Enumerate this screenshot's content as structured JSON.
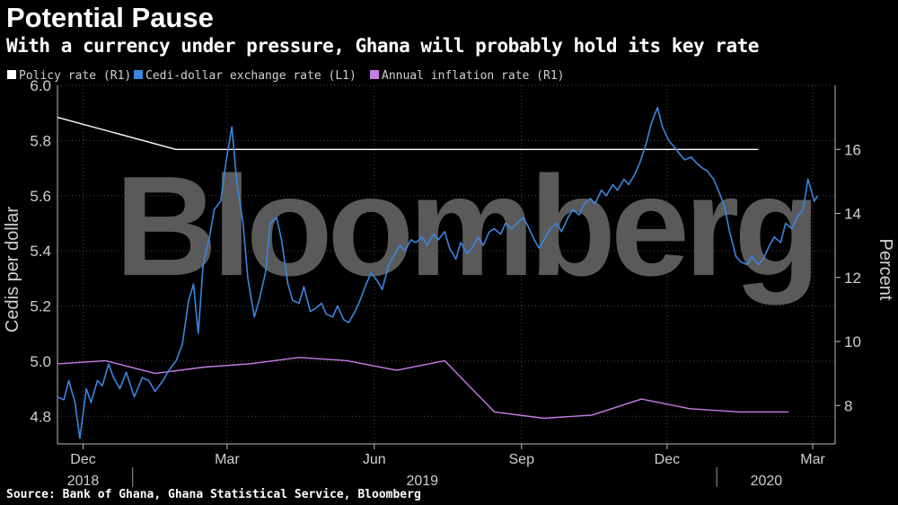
{
  "header": {
    "title": "Potential Pause",
    "subtitle": "With a currency under pressure, Ghana will probably hold its key rate"
  },
  "footer": {
    "source": "Source: Bank of Ghana, Ghana Statistical Service, Bloomberg"
  },
  "watermark": "Bloomberg",
  "colors": {
    "policy": "#ffffff",
    "cedi": "#3a86e0",
    "inflation": "#c47ee6",
    "grid": "#4a4a4a",
    "background": "#000000"
  },
  "chart_data": {
    "type": "line",
    "title": "Potential Pause",
    "subtitle": "With a currency under pressure, Ghana will probably hold its key rate",
    "grid": true,
    "legend_position": "top-left",
    "y_left": {
      "label": "Cedis per dollar",
      "range": [
        4.7,
        6.0
      ],
      "ticks": [
        "6.0",
        "5.8",
        "5.6",
        "5.4",
        "5.2",
        "5.0",
        "4.8"
      ],
      "tick_values": [
        6.0,
        5.8,
        5.6,
        5.4,
        5.2,
        5.0,
        4.8
      ]
    },
    "y_right": {
      "label": "Percent",
      "range": [
        6.8,
        18.0
      ],
      "ticks": [
        "16",
        "14",
        "12",
        "10",
        "8"
      ],
      "tick_values": [
        16,
        14,
        12,
        10,
        8
      ]
    },
    "x_axis": {
      "range": [
        "2018-11-15",
        "2020-03-15"
      ],
      "month_ticks": [
        {
          "label": "Dec",
          "date": "2018-12-01"
        },
        {
          "label": "Mar",
          "date": "2019-03-01"
        },
        {
          "label": "Jun",
          "date": "2019-06-01"
        },
        {
          "label": "Sep",
          "date": "2019-09-01"
        },
        {
          "label": "Dec",
          "date": "2019-12-01"
        },
        {
          "label": "Mar",
          "date": "2020-03-01"
        }
      ],
      "year_labels": [
        {
          "label": "2018",
          "date": "2018-12-01"
        },
        {
          "label": "2019",
          "date": "2019-07-01"
        },
        {
          "label": "2020",
          "date": "2020-02-01"
        }
      ],
      "year_dividers": [
        "2019-01-01",
        "2020-01-01"
      ]
    },
    "series": [
      {
        "name": "Policy rate (R1)",
        "axis": "right",
        "color": "#ffffff",
        "points": [
          [
            "2018-11-15",
            17.0
          ],
          [
            "2019-01-28",
            16.0
          ],
          [
            "2019-03-25",
            16.0
          ],
          [
            "2019-05-20",
            16.0
          ],
          [
            "2019-07-29",
            16.0
          ],
          [
            "2019-09-23",
            16.0
          ],
          [
            "2019-11-25",
            16.0
          ],
          [
            "2020-01-27",
            16.0
          ]
        ]
      },
      {
        "name": "Cedi-dollar exchange rate  (L1)",
        "axis": "left",
        "color": "#3a86e0",
        "points": [
          [
            "2018-11-15",
            4.87
          ],
          [
            "2018-11-19",
            4.86
          ],
          [
            "2018-11-22",
            4.93
          ],
          [
            "2018-11-26",
            4.85
          ],
          [
            "2018-11-29",
            4.72
          ],
          [
            "2018-12-03",
            4.9
          ],
          [
            "2018-12-06",
            4.85
          ],
          [
            "2018-12-10",
            4.93
          ],
          [
            "2018-12-13",
            4.91
          ],
          [
            "2018-12-17",
            4.99
          ],
          [
            "2018-12-20",
            4.94
          ],
          [
            "2018-12-24",
            4.9
          ],
          [
            "2018-12-28",
            4.96
          ],
          [
            "2019-01-02",
            4.87
          ],
          [
            "2019-01-07",
            4.94
          ],
          [
            "2019-01-11",
            4.93
          ],
          [
            "2019-01-15",
            4.89
          ],
          [
            "2019-01-20",
            4.93
          ],
          [
            "2019-01-24",
            4.97
          ],
          [
            "2019-01-28",
            5.0
          ],
          [
            "2019-02-01",
            5.06
          ],
          [
            "2019-02-05",
            5.22
          ],
          [
            "2019-02-08",
            5.28
          ],
          [
            "2019-02-11",
            5.1
          ],
          [
            "2019-02-14",
            5.35
          ],
          [
            "2019-02-18",
            5.45
          ],
          [
            "2019-02-21",
            5.55
          ],
          [
            "2019-02-25",
            5.58
          ],
          [
            "2019-02-28",
            5.71
          ],
          [
            "2019-03-04",
            5.85
          ],
          [
            "2019-03-07",
            5.65
          ],
          [
            "2019-03-11",
            5.5
          ],
          [
            "2019-03-14",
            5.3
          ],
          [
            "2019-03-18",
            5.16
          ],
          [
            "2019-03-21",
            5.22
          ],
          [
            "2019-03-25",
            5.32
          ],
          [
            "2019-03-28",
            5.5
          ],
          [
            "2019-04-01",
            5.52
          ],
          [
            "2019-04-04",
            5.44
          ],
          [
            "2019-04-08",
            5.28
          ],
          [
            "2019-04-11",
            5.22
          ],
          [
            "2019-04-15",
            5.21
          ],
          [
            "2019-04-18",
            5.27
          ],
          [
            "2019-04-22",
            5.18
          ],
          [
            "2019-04-25",
            5.19
          ],
          [
            "2019-04-29",
            5.21
          ],
          [
            "2019-05-02",
            5.17
          ],
          [
            "2019-05-06",
            5.16
          ],
          [
            "2019-05-09",
            5.2
          ],
          [
            "2019-05-13",
            5.15
          ],
          [
            "2019-05-16",
            5.14
          ],
          [
            "2019-05-20",
            5.18
          ],
          [
            "2019-05-23",
            5.22
          ],
          [
            "2019-05-27",
            5.28
          ],
          [
            "2019-05-30",
            5.32
          ],
          [
            "2019-06-03",
            5.29
          ],
          [
            "2019-06-06",
            5.26
          ],
          [
            "2019-06-10",
            5.35
          ],
          [
            "2019-06-13",
            5.38
          ],
          [
            "2019-06-17",
            5.42
          ],
          [
            "2019-06-20",
            5.4
          ],
          [
            "2019-06-24",
            5.44
          ],
          [
            "2019-06-27",
            5.43
          ],
          [
            "2019-07-01",
            5.45
          ],
          [
            "2019-07-04",
            5.42
          ],
          [
            "2019-07-08",
            5.46
          ],
          [
            "2019-07-11",
            5.44
          ],
          [
            "2019-07-15",
            5.47
          ],
          [
            "2019-07-18",
            5.41
          ],
          [
            "2019-07-22",
            5.37
          ],
          [
            "2019-07-25",
            5.43
          ],
          [
            "2019-07-29",
            5.39
          ],
          [
            "2019-08-01",
            5.41
          ],
          [
            "2019-08-05",
            5.45
          ],
          [
            "2019-08-08",
            5.42
          ],
          [
            "2019-08-12",
            5.47
          ],
          [
            "2019-08-15",
            5.48
          ],
          [
            "2019-08-19",
            5.46
          ],
          [
            "2019-08-22",
            5.5
          ],
          [
            "2019-08-26",
            5.48
          ],
          [
            "2019-08-29",
            5.5
          ],
          [
            "2019-09-02",
            5.52
          ],
          [
            "2019-09-05",
            5.49
          ],
          [
            "2019-09-09",
            5.44
          ],
          [
            "2019-09-12",
            5.41
          ],
          [
            "2019-09-16",
            5.45
          ],
          [
            "2019-09-19",
            5.48
          ],
          [
            "2019-09-23",
            5.5
          ],
          [
            "2019-09-26",
            5.47
          ],
          [
            "2019-09-30",
            5.52
          ],
          [
            "2019-10-03",
            5.55
          ],
          [
            "2019-10-07",
            5.53
          ],
          [
            "2019-10-10",
            5.57
          ],
          [
            "2019-10-14",
            5.59
          ],
          [
            "2019-10-17",
            5.57
          ],
          [
            "2019-10-21",
            5.62
          ],
          [
            "2019-10-24",
            5.6
          ],
          [
            "2019-10-28",
            5.64
          ],
          [
            "2019-10-31",
            5.62
          ],
          [
            "2019-11-04",
            5.66
          ],
          [
            "2019-11-07",
            5.64
          ],
          [
            "2019-11-11",
            5.68
          ],
          [
            "2019-11-14",
            5.72
          ],
          [
            "2019-11-18",
            5.79
          ],
          [
            "2019-11-21",
            5.86
          ],
          [
            "2019-11-25",
            5.92
          ],
          [
            "2019-11-28",
            5.85
          ],
          [
            "2019-12-02",
            5.8
          ],
          [
            "2019-12-05",
            5.78
          ],
          [
            "2019-12-09",
            5.75
          ],
          [
            "2019-12-12",
            5.73
          ],
          [
            "2019-12-16",
            5.74
          ],
          [
            "2019-12-19",
            5.72
          ],
          [
            "2019-12-23",
            5.7
          ],
          [
            "2019-12-26",
            5.69
          ],
          [
            "2019-12-30",
            5.66
          ],
          [
            "2020-01-02",
            5.62
          ],
          [
            "2020-01-06",
            5.56
          ],
          [
            "2020-01-09",
            5.47
          ],
          [
            "2020-01-13",
            5.38
          ],
          [
            "2020-01-16",
            5.36
          ],
          [
            "2020-01-20",
            5.35
          ],
          [
            "2020-01-23",
            5.38
          ],
          [
            "2020-01-27",
            5.35
          ],
          [
            "2020-01-30",
            5.37
          ],
          [
            "2020-02-03",
            5.42
          ],
          [
            "2020-02-06",
            5.45
          ],
          [
            "2020-02-10",
            5.43
          ],
          [
            "2020-02-13",
            5.5
          ],
          [
            "2020-02-17",
            5.48
          ],
          [
            "2020-02-20",
            5.52
          ],
          [
            "2020-02-24",
            5.55
          ],
          [
            "2020-02-27",
            5.66
          ],
          [
            "2020-03-02",
            5.58
          ],
          [
            "2020-03-04",
            5.6
          ]
        ]
      },
      {
        "name": "Annual inflation rate (R1)",
        "axis": "right",
        "color": "#c47ee6",
        "points": [
          [
            "2018-11-15",
            9.3
          ],
          [
            "2018-12-15",
            9.4
          ],
          [
            "2019-01-15",
            9.0
          ],
          [
            "2019-02-15",
            9.2
          ],
          [
            "2019-03-15",
            9.3
          ],
          [
            "2019-04-15",
            9.5
          ],
          [
            "2019-05-15",
            9.4
          ],
          [
            "2019-06-15",
            9.1
          ],
          [
            "2019-07-15",
            9.4
          ],
          [
            "2019-08-15",
            7.8
          ],
          [
            "2019-09-15",
            7.6
          ],
          [
            "2019-10-15",
            7.7
          ],
          [
            "2019-11-15",
            8.2
          ],
          [
            "2019-12-15",
            7.9
          ],
          [
            "2020-01-15",
            7.8
          ],
          [
            "2020-02-15",
            7.8
          ]
        ]
      }
    ]
  }
}
